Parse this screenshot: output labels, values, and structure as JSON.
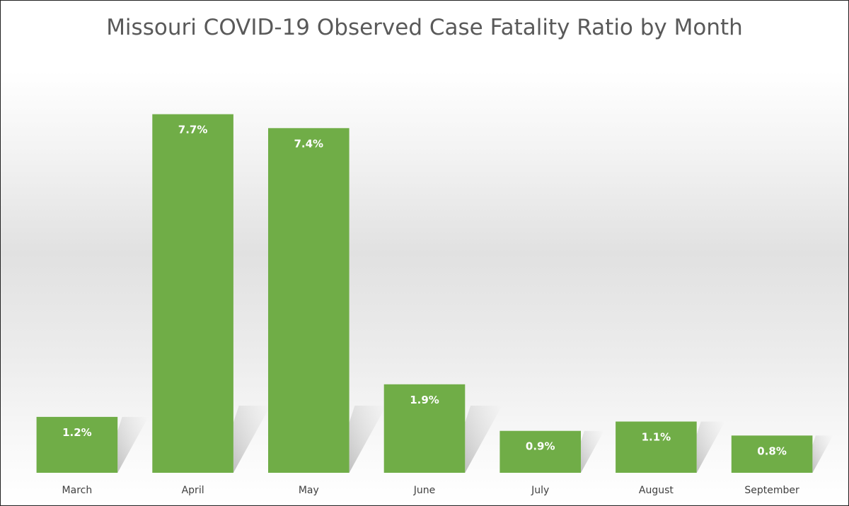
{
  "chart_data": {
    "type": "bar",
    "title": "Missouri COVID-19 Observed Case Fatality Ratio by Month",
    "xlabel": "",
    "ylabel": "",
    "categories": [
      "March",
      "April",
      "May",
      "June",
      "July",
      "August",
      "September"
    ],
    "values": [
      1.2,
      7.7,
      7.4,
      1.9,
      0.9,
      1.1,
      0.8
    ],
    "data_labels": [
      "1.2%",
      "7.7%",
      "7.4%",
      "1.9%",
      "0.9%",
      "1.1%",
      "0.8%"
    ],
    "unit": "%",
    "ylim": [
      0,
      9
    ],
    "grid": false,
    "legend": "none",
    "bar_color": "#70AD47",
    "shadow_color": "#9a9a9a"
  }
}
